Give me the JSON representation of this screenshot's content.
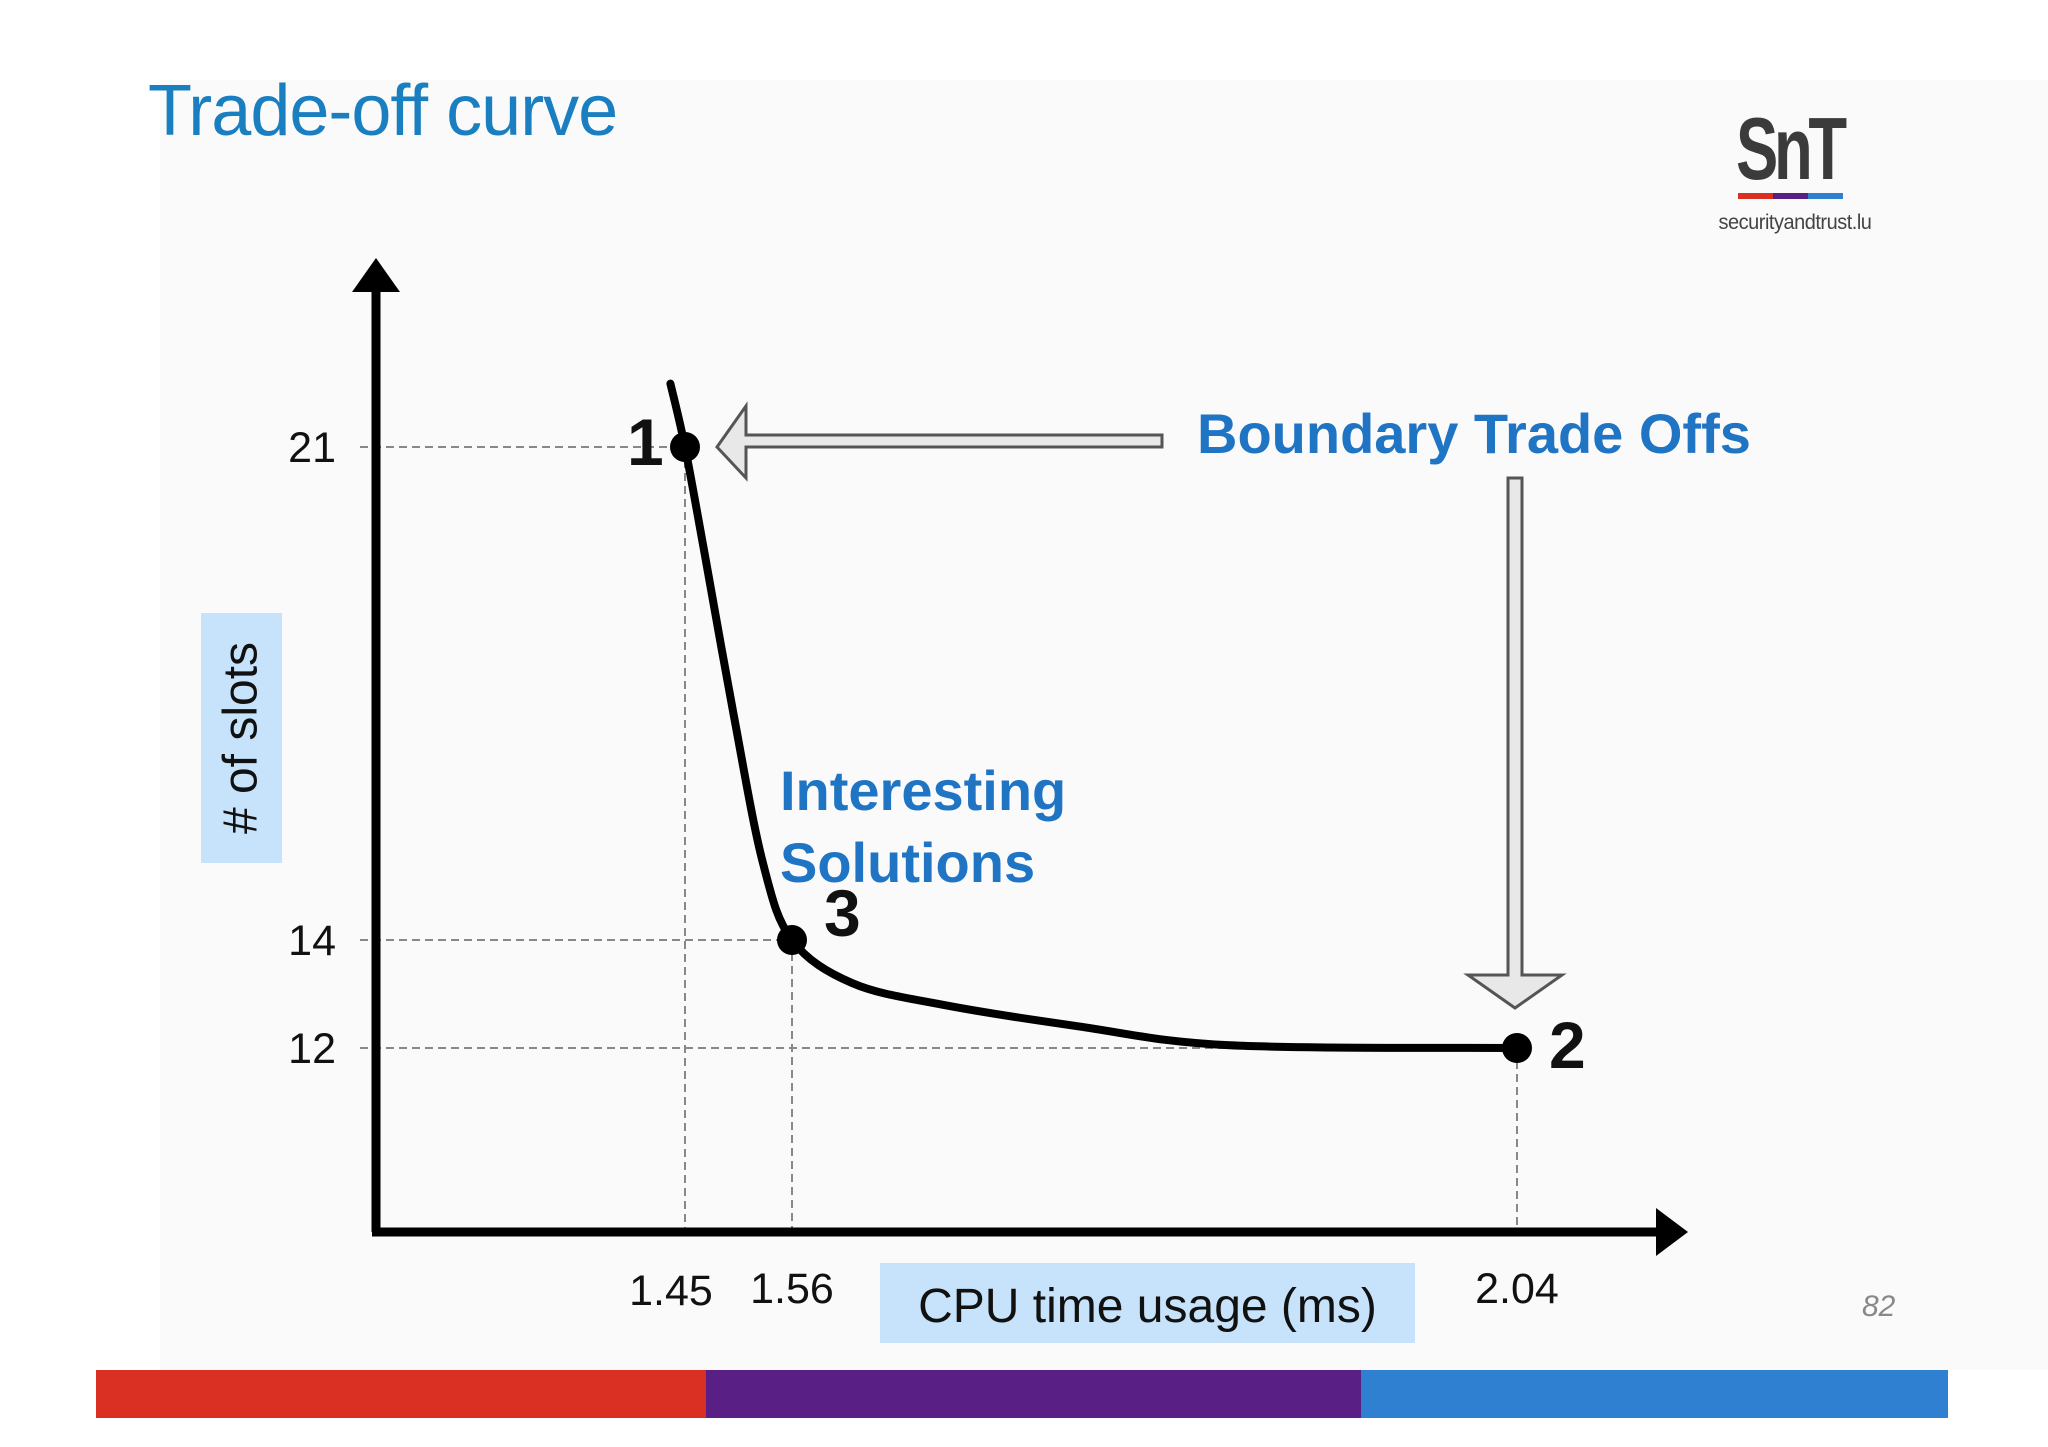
{
  "slide": {
    "title": "Trade-off curve",
    "page_number": "82",
    "logo": {
      "mark": "SnT",
      "url": "securityandtrust.lu"
    },
    "colors": {
      "title": "#1a7fc0",
      "red": "#d93023",
      "purple": "#5a1f84",
      "blue": "#2f80d0",
      "label_box": "#c7e3fb"
    }
  },
  "chart_data": {
    "type": "line",
    "title": "",
    "xlabel": "CPU time usage (ms)",
    "ylabel": "# of slots",
    "x_ticks": [
      "1.45",
      "1.56",
      "2.04"
    ],
    "y_ticks": [
      "21",
      "14",
      "12"
    ],
    "series": [
      {
        "x": [
          1.435,
          1.45,
          1.47,
          1.5,
          1.53,
          1.56,
          1.6,
          1.66,
          1.75,
          1.85,
          2.04
        ],
        "y": [
          21.9,
          21,
          19.5,
          17.2,
          15.1,
          14,
          13.2,
          12.8,
          12.4,
          12.05,
          12
        ]
      }
    ],
    "points": [
      {
        "label": "1",
        "x": 1.45,
        "y": 21
      },
      {
        "label": "3",
        "x": 1.56,
        "y": 14
      },
      {
        "label": "2",
        "x": 2.04,
        "y": 12
      }
    ],
    "annotations": {
      "boundary": "Boundary Trade Offs",
      "interesting_line1": "Interesting",
      "interesting_line2": "Solutions"
    },
    "grid": false,
    "guides": "dashed lines from labeled points to both axes"
  }
}
